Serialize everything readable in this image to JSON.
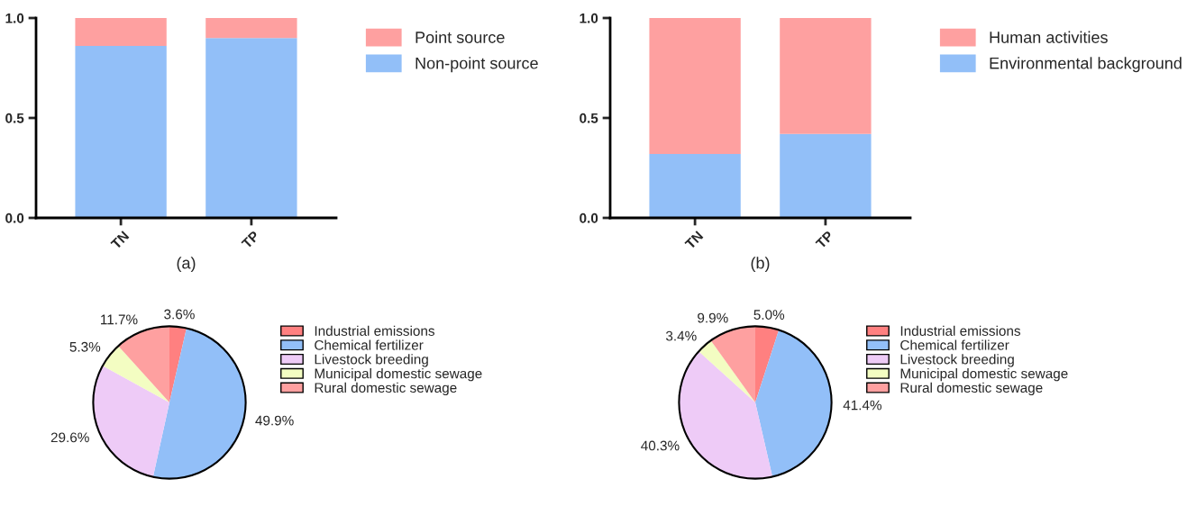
{
  "chart_data": [
    {
      "type": "bar",
      "xlabel": "(a)",
      "categories": [
        "TN",
        "TP"
      ],
      "stacked": true,
      "ylim": [
        0,
        1.0
      ],
      "yticks": [
        {
          "value": 0,
          "label": "0.0"
        },
        {
          "value": 0.5,
          "label": "0.5"
        },
        {
          "value": 1.0,
          "label": "1.0"
        }
      ],
      "legend": "right",
      "grid": false,
      "series": [
        {
          "name": "Non-point source",
          "color": "#92bff8",
          "values": [
            0.86,
            0.9
          ]
        },
        {
          "name": "Point source",
          "color": "#fea0a0",
          "values": [
            0.14,
            0.1
          ]
        }
      ]
    },
    {
      "type": "bar",
      "xlabel": "(b)",
      "categories": [
        "TN",
        "TP"
      ],
      "stacked": true,
      "ylim": [
        0,
        1.0
      ],
      "yticks": [
        {
          "value": 0,
          "label": "0.0"
        },
        {
          "value": 0.5,
          "label": "0.5"
        },
        {
          "value": 1.0,
          "label": "1.0"
        }
      ],
      "legend": "right",
      "grid": false,
      "series": [
        {
          "name": "Environmental background",
          "color": "#92bff8",
          "values": [
            0.32,
            0.42
          ]
        },
        {
          "name": "Human activities",
          "color": "#fea0a0",
          "values": [
            0.68,
            0.58
          ]
        }
      ]
    },
    {
      "type": "pie",
      "categories": [
        "Industrial emissions",
        "Chemical fertilizer",
        "Livestock breeding",
        "Municipal domestic sewage",
        "Rural domestic sewage"
      ],
      "values": [
        3.6,
        49.9,
        29.6,
        5.3,
        11.7
      ],
      "value_labels": [
        "3.6%",
        "49.9%",
        "29.6%",
        "5.3%",
        "11.7%"
      ],
      "colors": [
        "#ff8080",
        "#92bff8",
        "#eecbf7",
        "#f3fdc2",
        "#fea0a0"
      ],
      "legend": "right"
    },
    {
      "type": "pie",
      "categories": [
        "Industrial emissions",
        "Chemical fertilizer",
        "Livestock breeding",
        "Municipal domestic sewage",
        "Rural domestic sewage"
      ],
      "values": [
        5.0,
        41.4,
        40.3,
        3.4,
        9.9
      ],
      "value_labels": [
        "5.0%",
        "41.4%",
        "40.3%",
        "3.4%",
        "9.9%"
      ],
      "colors": [
        "#ff8080",
        "#92bff8",
        "#eecbf7",
        "#f3fdc2",
        "#fea0a0"
      ],
      "legend": "right"
    }
  ]
}
